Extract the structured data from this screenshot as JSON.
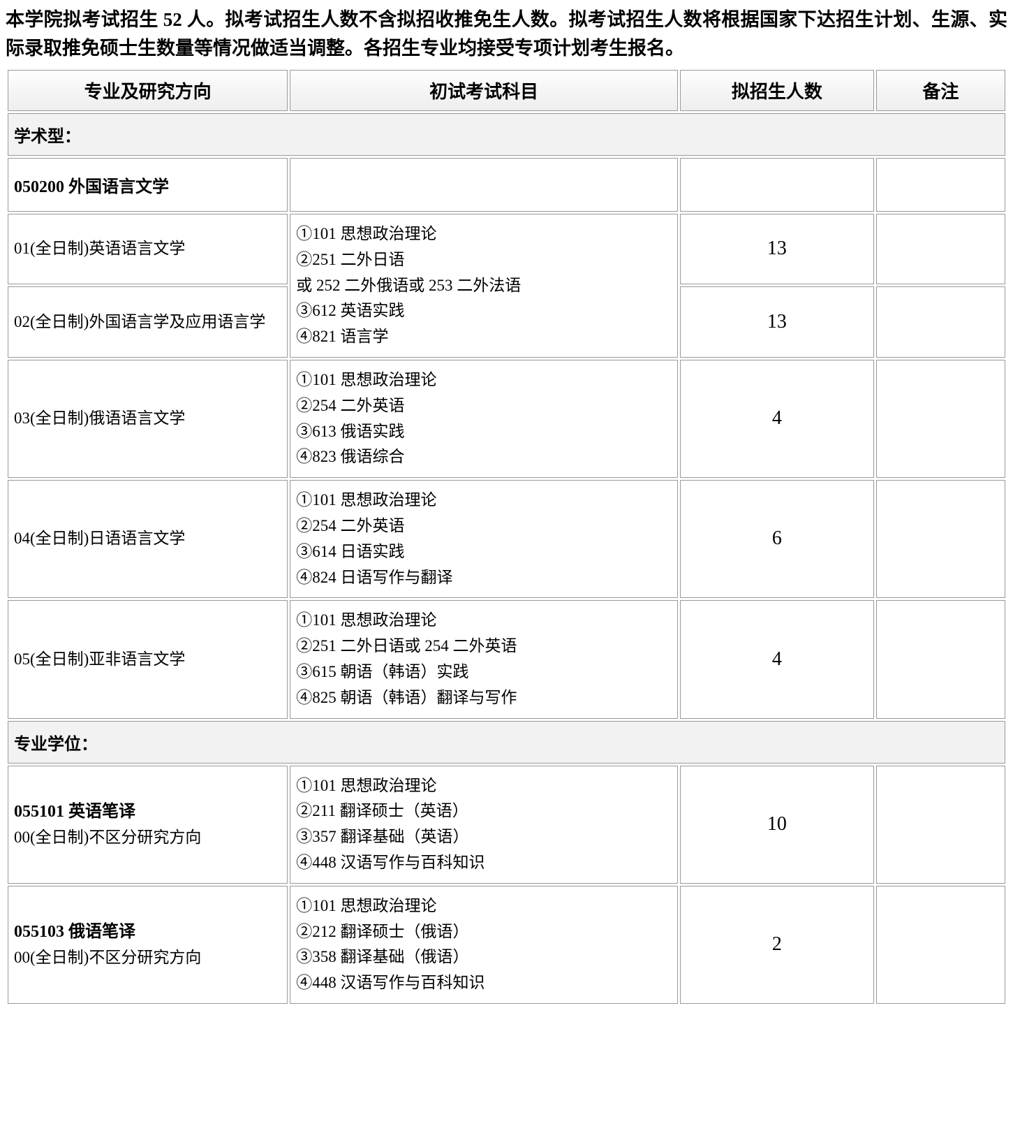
{
  "intro": "本学院拟考试招生 52 人。拟考试招生人数不含拟招收推免生人数。拟考试招生人数将根据国家下达招生计划、生源、实际录取推免硕士生数量等情况做适当调整。各招生专业均接受专项计划考生报名。",
  "columns": {
    "c1": "专业及研究方向",
    "c2": "初试考试科目",
    "c3": "拟招生人数",
    "c4": "备注"
  },
  "sections": {
    "academic": "学术型：",
    "professional": "专业学位："
  },
  "program": {
    "p1": "050200 外国语言文学"
  },
  "rows": {
    "r1": {
      "major": "01(全日制)英语语言文学",
      "count": "13",
      "note": ""
    },
    "r2": {
      "major": "02(全日制)外国语言学及应用语言学",
      "count": "13",
      "note": ""
    },
    "exam_shared_12": "①101 思想政治理论\n②251 二外日语\n或 252 二外俄语或 253 二外法语\n③612 英语实践\n④821 语言学",
    "r3": {
      "major": "03(全日制)俄语语言文学",
      "exam": "①101 思想政治理论\n②254 二外英语\n③613 俄语实践\n④823 俄语综合",
      "count": "4",
      "note": ""
    },
    "r4": {
      "major": "04(全日制)日语语言文学",
      "exam": "①101 思想政治理论\n②254 二外英语\n③614 日语实践\n④824 日语写作与翻译",
      "count": "6",
      "note": ""
    },
    "r5": {
      "major": "05(全日制)亚非语言文学",
      "exam": "①101 思想政治理论\n②251 二外日语或 254 二外英语\n③615 朝语（韩语）实践\n④825 朝语（韩语）翻译与写作",
      "count": "4",
      "note": ""
    },
    "r6": {
      "title": "055101 英语笔译",
      "sub": "00(全日制)不区分研究方向",
      "exam": "①101 思想政治理论\n②211 翻译硕士（英语）\n③357 翻译基础（英语）\n④448 汉语写作与百科知识",
      "count": "10",
      "note": ""
    },
    "r7": {
      "title": "055103 俄语笔译",
      "sub": "00(全日制)不区分研究方向",
      "exam": "①101 思想政治理论\n②212 翻译硕士（俄语）\n③358 翻译基础（俄语）\n④448 汉语写作与百科知识",
      "count": "2",
      "note": ""
    }
  },
  "style": {
    "font_family": "SimSun",
    "intro_fontsize_pt": 20,
    "header_fontsize_pt": 20,
    "body_fontsize_pt": 17,
    "count_fontsize_pt": 21,
    "background_color": "#ffffff",
    "border_color": "#999999",
    "section_bg": "#f2f2f2",
    "header_gradient_top": "#ffffff",
    "header_gradient_bottom": "#eeeeee",
    "text_color": "#000000",
    "col_widths_pct": [
      26,
      36,
      18,
      12
    ]
  }
}
